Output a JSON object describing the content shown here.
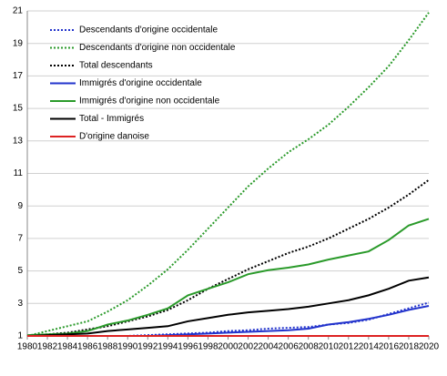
{
  "chart_data": {
    "type": "line",
    "x": [
      1980,
      1982,
      1984,
      1986,
      1988,
      1990,
      1992,
      1994,
      1996,
      1998,
      2000,
      2002,
      2004,
      2006,
      2008,
      2010,
      2012,
      2014,
      2016,
      2018,
      2020
    ],
    "series": [
      {
        "name": "Descendants d'origine occidentale",
        "color": "#2233cc",
        "style": "dotted",
        "values": [
          1,
          1,
          1,
          1,
          1,
          1,
          1.05,
          1.1,
          1.15,
          1.2,
          1.3,
          1.35,
          1.45,
          1.5,
          1.55,
          1.7,
          1.8,
          2.0,
          2.35,
          2.7,
          3.05
        ]
      },
      {
        "name": "Descendants d'origine non occidentale",
        "color": "#2a9a2a",
        "style": "dotted",
        "values": [
          1,
          1.3,
          1.6,
          1.9,
          2.5,
          3.2,
          4.1,
          5.1,
          6.3,
          7.6,
          8.9,
          10.2,
          11.3,
          12.3,
          13.1,
          14.0,
          15.1,
          16.3,
          17.6,
          19.2,
          20.9
        ]
      },
      {
        "name": "Total  descendants",
        "color": "#000000",
        "style": "dotted",
        "values": [
          1,
          1.1,
          1.2,
          1.4,
          1.6,
          1.9,
          2.2,
          2.6,
          3.2,
          3.9,
          4.5,
          5.1,
          5.6,
          6.1,
          6.5,
          7.0,
          7.6,
          8.2,
          8.9,
          9.7,
          10.6
        ]
      },
      {
        "name": "Immigrés d'origine occidentale",
        "color": "#2233cc",
        "style": "solid",
        "values": [
          1,
          1,
          1,
          1,
          1,
          1,
          1,
          1.05,
          1.1,
          1.15,
          1.2,
          1.25,
          1.3,
          1.35,
          1.45,
          1.7,
          1.85,
          2.05,
          2.3,
          2.6,
          2.85
        ]
      },
      {
        "name": "Immigrés d'origine non occidentale",
        "color": "#2a9a2a",
        "style": "solid",
        "values": [
          1.05,
          1.1,
          1.15,
          1.3,
          1.7,
          1.95,
          2.3,
          2.7,
          3.5,
          3.9,
          4.3,
          4.8,
          5.05,
          5.2,
          5.4,
          5.7,
          5.95,
          6.2,
          6.9,
          7.8,
          8.2
        ]
      },
      {
        "name": "Total - Immigrés",
        "color": "#000000",
        "style": "solid",
        "values": [
          1,
          1.05,
          1.1,
          1.15,
          1.3,
          1.4,
          1.5,
          1.6,
          1.9,
          2.1,
          2.3,
          2.45,
          2.55,
          2.65,
          2.8,
          3.0,
          3.2,
          3.5,
          3.9,
          4.4,
          4.6
        ]
      },
      {
        "name": "D'origine danoise",
        "color": "#dd2222",
        "style": "solid",
        "values": [
          1,
          1,
          1,
          1,
          1,
          1,
          1,
          1,
          1,
          1,
          1,
          1,
          1,
          1,
          1,
          1,
          1,
          1,
          1,
          1,
          1
        ]
      }
    ],
    "xlim": [
      1980,
      2020
    ],
    "xticks": [
      1980,
      1982,
      1984,
      1986,
      1988,
      1990,
      1992,
      1994,
      1996,
      1998,
      2000,
      2002,
      2004,
      2006,
      2008,
      2010,
      2012,
      2014,
      2016,
      2018,
      2020
    ],
    "ylim": [
      1,
      21
    ],
    "yticks": [
      1,
      3,
      5,
      7,
      9,
      11,
      13,
      15,
      17,
      19,
      21
    ],
    "grid": true,
    "legend": "upper-left"
  }
}
